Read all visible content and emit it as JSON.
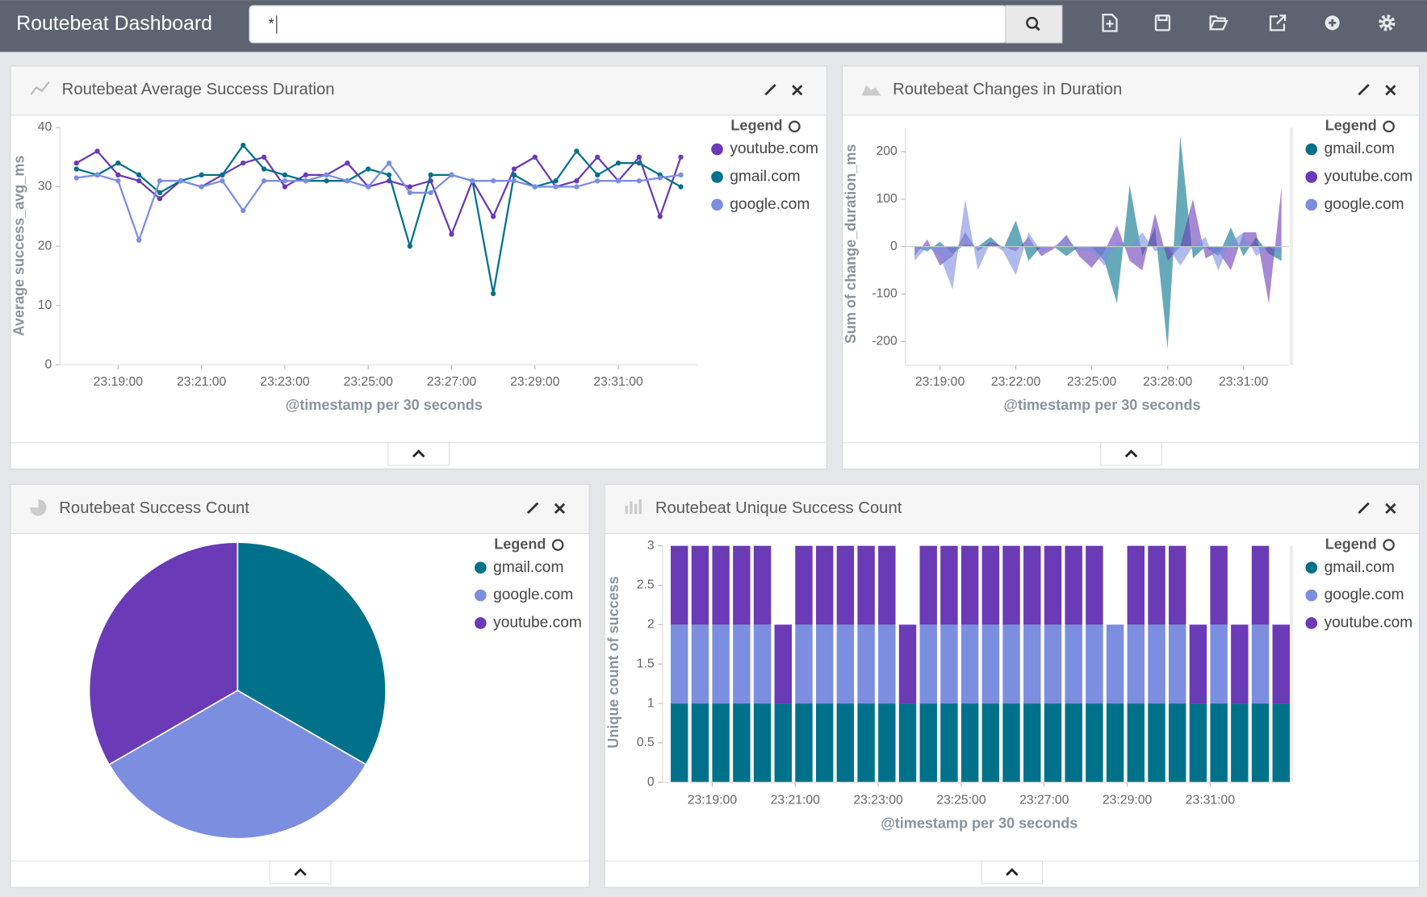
{
  "header": {
    "title": "Routebeat Dashboard",
    "query": "*"
  },
  "chart_data": [
    {
      "type": "line",
      "title": "Routebeat Average Success Duration",
      "legend_title": "Legend",
      "x_label": "@timestamp per 30 seconds",
      "y_label": "Average success_avg_ms",
      "categories": [
        null,
        null,
        "23:19:00",
        null,
        null,
        null,
        "23:21:00",
        null,
        null,
        null,
        "23:23:00",
        null,
        null,
        null,
        "23:25:00",
        null,
        null,
        null,
        "23:27:00",
        null,
        null,
        null,
        "23:29:00",
        null,
        null,
        null,
        "23:31:00",
        null,
        null,
        null
      ],
      "series": [
        {
          "name": "youtube.com",
          "color": "#6a3ab7",
          "values": [
            34,
            36,
            32,
            31,
            28,
            31,
            30,
            32,
            34,
            35,
            30,
            32,
            32,
            34,
            30,
            31,
            30,
            31,
            22,
            31,
            25,
            33,
            35,
            30,
            31,
            35,
            31,
            35,
            25,
            35
          ]
        },
        {
          "name": "gmail.com",
          "color": "#00718a",
          "values": [
            33,
            32,
            34,
            32,
            29,
            31,
            32,
            32,
            37,
            33,
            32,
            31,
            31,
            31,
            33,
            32,
            20,
            32,
            32,
            31,
            12,
            32,
            30,
            31,
            36,
            32,
            34,
            34,
            32,
            30
          ]
        },
        {
          "name": "google.com",
          "color": "#7b8ee0",
          "values": [
            31.5,
            32,
            31,
            21,
            31,
            31,
            30,
            31,
            26,
            31,
            31,
            31,
            32,
            31,
            30,
            34,
            29,
            29,
            32,
            31,
            31,
            31,
            30,
            30,
            30,
            31,
            31,
            31,
            31.5,
            32
          ]
        }
      ],
      "ylim": [
        0,
        40
      ],
      "yticks": [
        0,
        10,
        20,
        30,
        40
      ]
    },
    {
      "type": "area",
      "title": "Routebeat Changes in Duration",
      "legend_title": "Legend",
      "x_label": "@timestamp per 30 seconds",
      "y_label": "Sum of change_duration_ms",
      "categories": [
        null,
        null,
        "23:19:00",
        null,
        null,
        null,
        null,
        null,
        "23:22:00",
        null,
        null,
        null,
        null,
        null,
        "23:25:00",
        null,
        null,
        null,
        null,
        null,
        "23:28:00",
        null,
        null,
        null,
        null,
        null,
        "23:31:00",
        null,
        null,
        null
      ],
      "series": [
        {
          "name": "gmail.com",
          "color": "#00718a",
          "values": [
            0,
            -10,
            10,
            -15,
            5,
            0,
            20,
            -5,
            55,
            -30,
            0,
            0,
            -20,
            0,
            0,
            -30,
            -120,
            130,
            -20,
            40,
            -215,
            233,
            -25,
            0,
            -20,
            40,
            -20,
            20,
            -15,
            -30
          ]
        },
        {
          "name": "youtube.com",
          "color": "#6a3ab7",
          "values": [
            -20,
            15,
            -40,
            -20,
            30,
            -10,
            10,
            0,
            -10,
            20,
            -20,
            -5,
            25,
            -20,
            -45,
            -10,
            45,
            -30,
            -50,
            70,
            -30,
            0,
            100,
            -25,
            -10,
            -50,
            30,
            30,
            -120,
            125
          ]
        },
        {
          "name": "google.com",
          "color": "#7b8ee0",
          "values": [
            -30,
            0,
            -20,
            -90,
            100,
            -50,
            10,
            -10,
            -60,
            30,
            -10,
            0,
            20,
            -10,
            -10,
            -40,
            10,
            0,
            30,
            -10,
            0,
            -40,
            0,
            20,
            -50,
            10,
            30,
            -20,
            0,
            -15
          ]
        }
      ],
      "ylim": [
        -250,
        250
      ],
      "yticks": [
        -200,
        -100,
        0,
        100,
        200
      ]
    },
    {
      "type": "pie",
      "title": "Routebeat Success Count",
      "legend_title": "Legend",
      "categories": [
        "gmail.com",
        "google.com",
        "youtube.com"
      ],
      "values": [
        30,
        30,
        30
      ],
      "colors": [
        "#00718a",
        "#7b8ee0",
        "#6a3ab7"
      ]
    },
    {
      "type": "bar",
      "stacked": true,
      "title": "Routebeat Unique Success Count",
      "legend_title": "Legend",
      "x_label": "@timestamp per 30 seconds",
      "y_label": "Unique count of success",
      "categories": [
        null,
        null,
        "23:19:00",
        null,
        null,
        null,
        "23:21:00",
        null,
        null,
        null,
        "23:23:00",
        null,
        null,
        null,
        "23:25:00",
        null,
        null,
        null,
        "23:27:00",
        null,
        null,
        null,
        "23:29:00",
        null,
        null,
        null,
        "23:31:00",
        null,
        null,
        null
      ],
      "series": [
        {
          "name": "gmail.com",
          "color": "#00718a",
          "values": [
            1,
            1,
            1,
            1,
            1,
            1,
            1,
            1,
            1,
            1,
            1,
            1,
            1,
            1,
            1,
            1,
            1,
            1,
            1,
            1,
            1,
            1,
            1,
            1,
            1,
            1,
            1,
            1,
            1,
            1
          ]
        },
        {
          "name": "google.com",
          "color": "#7b8ee0",
          "values": [
            1,
            1,
            1,
            1,
            1,
            0,
            1,
            1,
            1,
            1,
            1,
            0,
            1,
            1,
            1,
            1,
            1,
            1,
            1,
            1,
            1,
            1,
            1,
            1,
            1,
            0,
            1,
            0,
            1,
            0
          ]
        },
        {
          "name": "youtube.com",
          "color": "#6a3ab7",
          "values": [
            1,
            1,
            1,
            1,
            1,
            1,
            1,
            1,
            1,
            1,
            1,
            1,
            1,
            1,
            1,
            1,
            1,
            1,
            1,
            1,
            1,
            0,
            1,
            1,
            1,
            1,
            1,
            1,
            1,
            1
          ]
        }
      ],
      "ylim": [
        0,
        3
      ],
      "yticks": [
        0,
        0.5,
        1,
        1.5,
        2,
        2.5,
        3
      ]
    }
  ]
}
